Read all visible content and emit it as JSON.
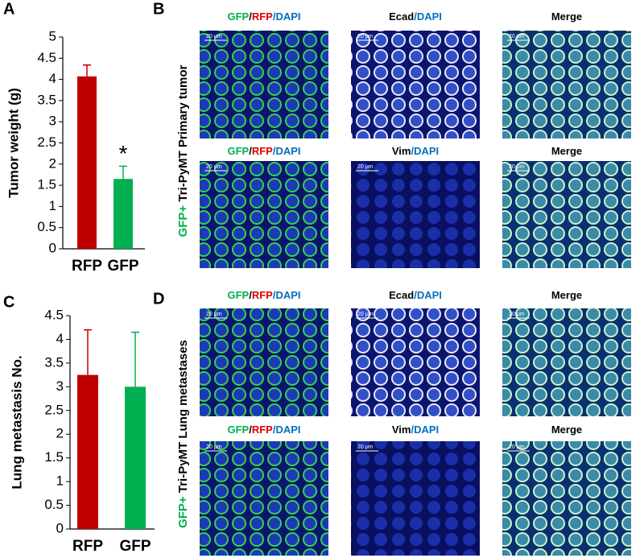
{
  "chart_data": [
    {
      "type": "bar",
      "label": "A",
      "ylabel": "Tumor weight (g)",
      "categories": [
        "RFP",
        "GFP"
      ],
      "values": [
        4.07,
        1.65
      ],
      "errors": [
        0.27,
        0.3
      ],
      "colors": [
        "#c00000",
        "#00b050"
      ],
      "ylim": [
        0,
        5
      ],
      "yticks": [
        0,
        0.5,
        1,
        1.5,
        2,
        2.5,
        3,
        3.5,
        4,
        4.5,
        5
      ],
      "annotations": [
        {
          "text": "*"
        }
      ]
    },
    {
      "type": "bar",
      "label": "C",
      "ylabel": "Lung metastasis No.",
      "categories": [
        "RFP",
        "GFP"
      ],
      "values": [
        3.25,
        3.0
      ],
      "errors": [
        0.95,
        1.15
      ],
      "colors": [
        "#c00000",
        "#00b050"
      ],
      "ylim": [
        0,
        4.5
      ],
      "yticks": [
        0,
        0.5,
        1,
        1.5,
        2,
        2.5,
        3,
        3.5,
        4,
        4.5
      ]
    }
  ],
  "panels": [
    {
      "label": "B",
      "side_label": [
        {
          "text": "GFP+",
          "color": "#00b050"
        },
        {
          "text": " Tri-PyMT Primary tumor",
          "color": "#000000"
        }
      ],
      "rows": [
        {
          "scale_bar": "20 μm",
          "headers": [
            [
              {
                "text": "GFP",
                "color": "#00b050"
              },
              {
                "text": "/",
                "color": "#000000"
              },
              {
                "text": "RFP",
                "color": "#e00000"
              },
              {
                "text": "/DAPI",
                "color": "#0070c0"
              }
            ],
            [
              {
                "text": "Ecad",
                "color": "#000000"
              },
              {
                "text": "/DAPI",
                "color": "#0070c0"
              }
            ],
            [
              {
                "text": "Merge",
                "color": "#000000"
              }
            ]
          ]
        },
        {
          "scale_bar": "20 μm",
          "headers": [
            [
              {
                "text": "GFP",
                "color": "#00b050"
              },
              {
                "text": "/",
                "color": "#000000"
              },
              {
                "text": "RFP",
                "color": "#e00000"
              },
              {
                "text": "/DAPI",
                "color": "#0070c0"
              }
            ],
            [
              {
                "text": "Vim",
                "color": "#000000"
              },
              {
                "text": "/DAPI",
                "color": "#0070c0"
              }
            ],
            [
              {
                "text": "Merge",
                "color": "#000000"
              }
            ]
          ]
        }
      ]
    },
    {
      "label": "D",
      "side_label": [
        {
          "text": "GFP+",
          "color": "#00b050"
        },
        {
          "text": " Tri-PyMT Lung metastases",
          "color": "#000000"
        }
      ],
      "rows": [
        {
          "scale_bar": "20 μm",
          "headers": [
            [
              {
                "text": "GFP",
                "color": "#00b050"
              },
              {
                "text": "/",
                "color": "#000000"
              },
              {
                "text": "RFP",
                "color": "#e00000"
              },
              {
                "text": "/DAPI",
                "color": "#0070c0"
              }
            ],
            [
              {
                "text": "Ecad",
                "color": "#000000"
              },
              {
                "text": "/DAPI",
                "color": "#0070c0"
              }
            ],
            [
              {
                "text": "Merge",
                "color": "#000000"
              }
            ]
          ]
        },
        {
          "scale_bar": "20 μm",
          "headers": [
            [
              {
                "text": "GFP",
                "color": "#00b050"
              },
              {
                "text": "/",
                "color": "#000000"
              },
              {
                "text": "RFP",
                "color": "#e00000"
              },
              {
                "text": "/DAPI",
                "color": "#0070c0"
              }
            ],
            [
              {
                "text": "Vim",
                "color": "#000000"
              },
              {
                "text": "/DAPI",
                "color": "#0070c0"
              }
            ],
            [
              {
                "text": "Merge",
                "color": "#000000"
              }
            ]
          ]
        }
      ]
    }
  ]
}
